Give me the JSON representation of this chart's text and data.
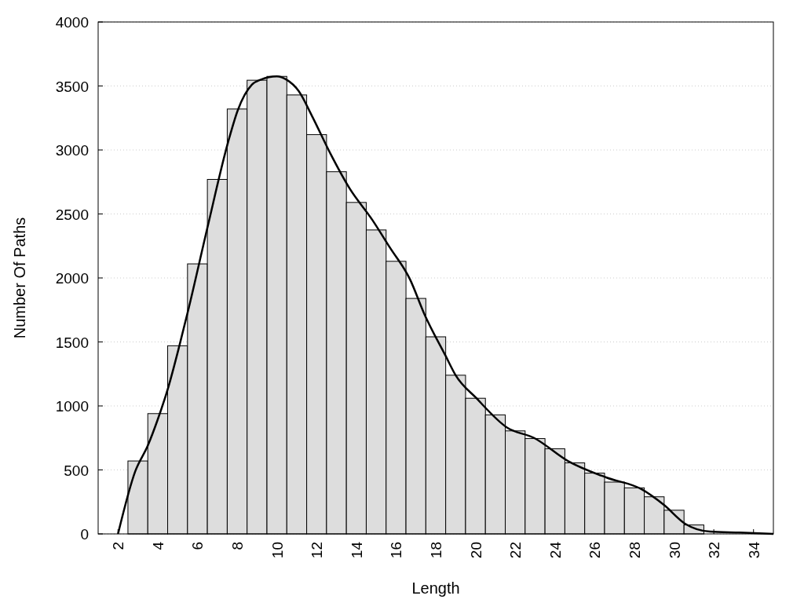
{
  "chart_data": {
    "type": "histogram",
    "xlabel": "Length",
    "ylabel": "Number Of Paths",
    "bins": [
      2.5,
      3.5,
      4.5,
      5.5,
      6.5,
      7.5,
      8.5,
      9.5,
      10.5,
      11.5,
      12.5,
      13.5,
      14.5,
      15.5,
      16.5,
      17.5,
      18.5,
      19.5,
      20.5,
      21.5,
      22.5,
      23.5,
      24.5,
      25.5,
      26.5,
      27.5,
      28.5,
      29.5,
      30.5,
      31.5
    ],
    "values": [
      570,
      940,
      1470,
      2110,
      2770,
      3320,
      3545,
      3575,
      3430,
      3120,
      2830,
      2590,
      2375,
      2130,
      1840,
      1540,
      1240,
      1060,
      930,
      805,
      745,
      665,
      555,
      475,
      405,
      360,
      290,
      185,
      70
    ],
    "color": "#dddddd",
    "series": [
      {
        "type": "line",
        "color": "#000000",
        "x": [
          2,
          2.87,
          3.5,
          3.98,
          4.54,
          5.09,
          5.57,
          6.52,
          7.55,
          8.03,
          8.74,
          9.2,
          10.0,
          10.48,
          11.1,
          11.77,
          12.7,
          13.66,
          14.8,
          15.7,
          16.7,
          17.42,
          18.5,
          19.0,
          20.05,
          21.6,
          22.95,
          24.65,
          26.6,
          28.35,
          29.5,
          30.55,
          31.8,
          33.3,
          35
        ],
        "values": [
          0,
          490,
          690,
          885,
          1150,
          1470,
          1770,
          2405,
          3065,
          3310,
          3510,
          3550,
          3575,
          3550,
          3460,
          3265,
          2970,
          2700,
          2455,
          2235,
          1990,
          1720,
          1390,
          1240,
          1060,
          830,
          750,
          570,
          440,
          350,
          225,
          80,
          18,
          10,
          0
        ]
      }
    ],
    "xlim": [
      1,
      35
    ],
    "xticks": [
      2,
      4,
      6,
      8,
      10,
      12,
      14,
      16,
      18,
      20,
      22,
      24,
      26,
      28,
      30,
      32,
      34
    ],
    "ylim": [
      0,
      4000
    ],
    "yticks": [
      0,
      500,
      1000,
      1500,
      2000,
      2500,
      3000,
      3500,
      4000
    ],
    "grid": "y",
    "marker": "none",
    "line_style": "solid"
  }
}
